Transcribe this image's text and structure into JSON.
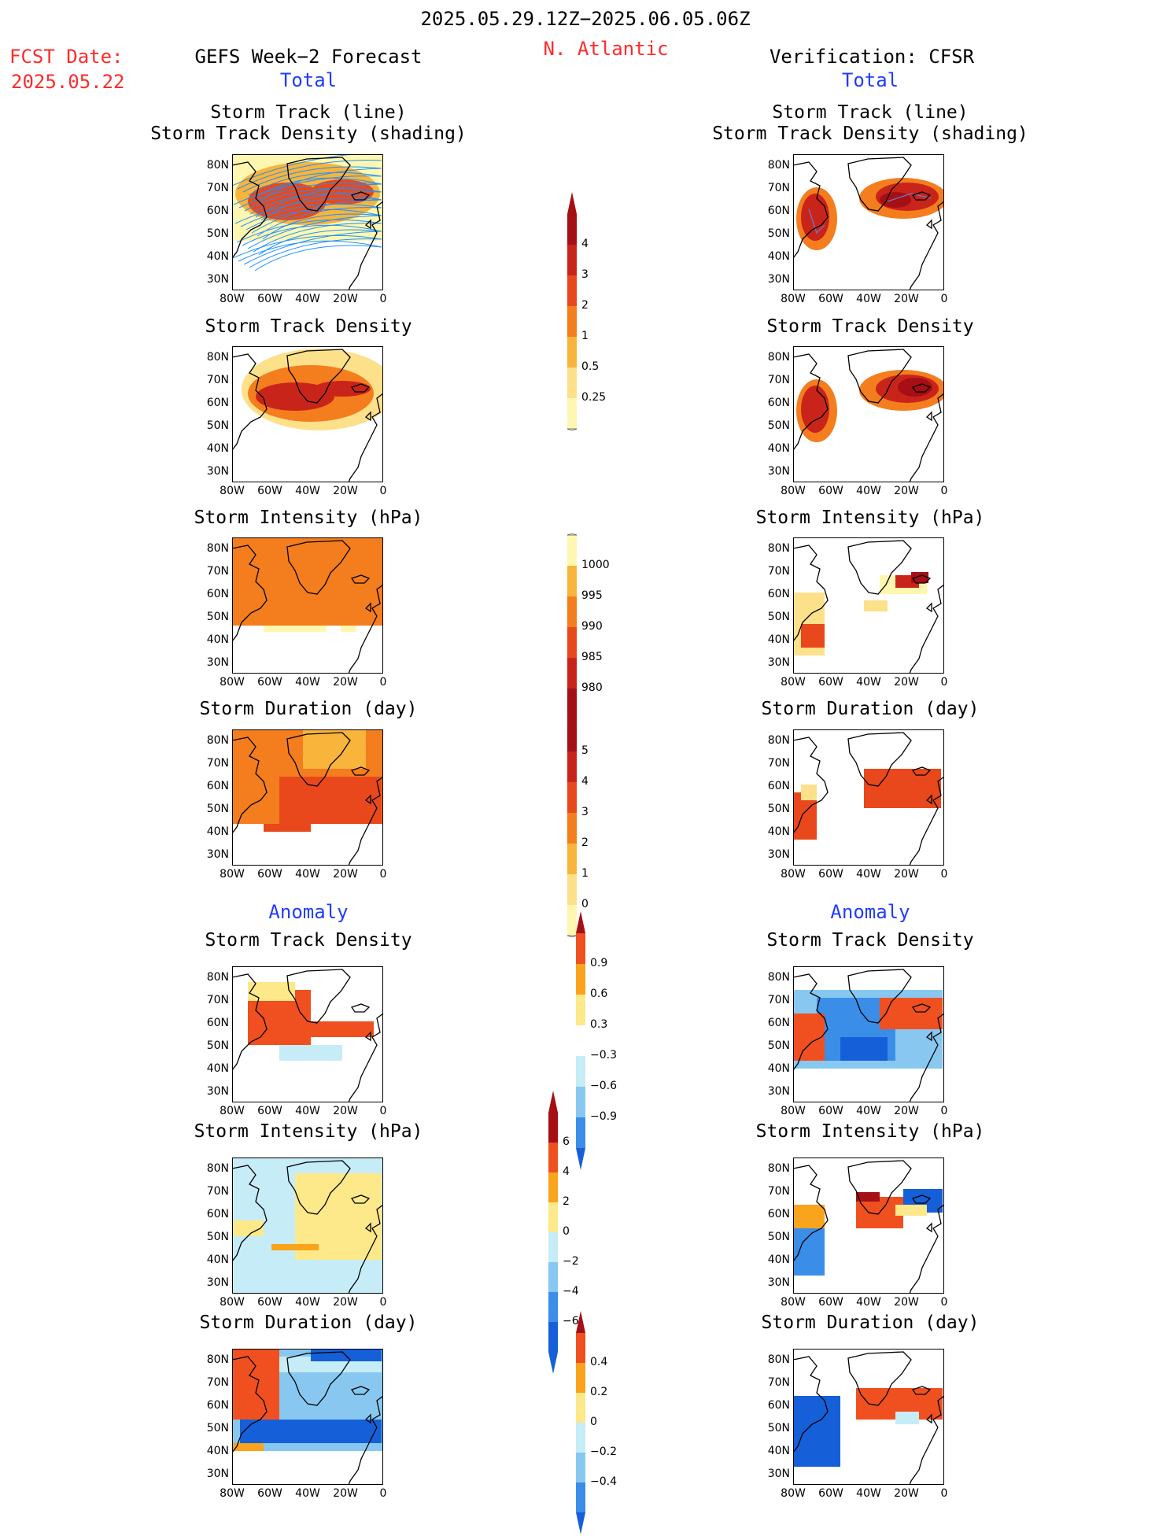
{
  "header": {
    "date_range": "2025.05.29.12Z−2025.06.05.06Z",
    "region": "N. Atlantic",
    "fcst_label": "FCST Date:",
    "fcst_date": "2025.05.22",
    "left_title": "GEFS Week−2 Forecast",
    "right_title": "Verification: CFSR",
    "total_left": "Total",
    "total_right": "Total",
    "anomaly_left": "Anomaly",
    "anomaly_right": "Anomaly"
  },
  "axes": {
    "lat_labels": [
      "80N",
      "70N",
      "60N",
      "50N",
      "40N",
      "30N"
    ],
    "lon_labels": [
      "80W",
      "60W",
      "40W",
      "20W",
      "0"
    ]
  },
  "panels": {
    "row1_title_a": "Storm Track (line)",
    "row1_title_b": "Storm Track Density (shading)",
    "density": "Storm Track Density",
    "intensity": "Storm Intensity (hPa)",
    "duration": "Storm Duration (day)"
  },
  "colorbars": {
    "density_total": [
      "4",
      "3",
      "2",
      "1",
      "0.5",
      "0.25"
    ],
    "intensity_total": [
      "1000",
      "995",
      "990",
      "985",
      "980"
    ],
    "duration_total": [
      "5",
      "4",
      "3",
      "2",
      "1",
      "0"
    ],
    "density_anom": [
      "0.9",
      "0.6",
      "0.3",
      "−0.3",
      "−0.6",
      "−0.9"
    ],
    "intensity_anom": [
      "6",
      "4",
      "2",
      "0",
      "−2",
      "−4",
      "−6"
    ],
    "duration_anom": [
      "0.4",
      "0.2",
      "0",
      "−0.2",
      "−0.4"
    ]
  },
  "colors": {
    "warm": [
      "#fff7b0",
      "#fde08a",
      "#f9b43c",
      "#f47d1e",
      "#e8481c",
      "#c9241a",
      "#a50f15"
    ],
    "anom": [
      "#1560d8",
      "#3a8ee8",
      "#88c8f0",
      "#c6ecf8",
      "#ffffff",
      "#fde88a",
      "#f9a41c",
      "#f05020",
      "#a50f15"
    ],
    "track": "#1e90ff"
  }
}
